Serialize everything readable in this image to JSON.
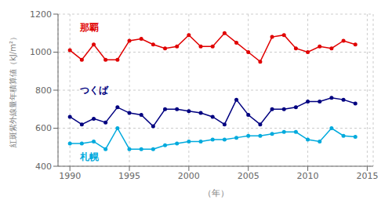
{
  "chart_data": {
    "type": "line",
    "xlabel": "（年）",
    "ylabel": "紅斑紫外線量年積算値（kJ/m²）",
    "x": [
      1990,
      1991,
      1992,
      1993,
      1994,
      1995,
      1996,
      1997,
      1998,
      1999,
      2000,
      2001,
      2002,
      2003,
      2004,
      2005,
      2006,
      2007,
      2008,
      2009,
      2010,
      2011,
      2012,
      2013,
      2014
    ],
    "series": [
      {
        "name": "那覇",
        "color": "#e00000",
        "values": [
          1010,
          960,
          1040,
          960,
          960,
          1060,
          1070,
          1040,
          1020,
          1030,
          1090,
          1030,
          1030,
          1100,
          1050,
          1000,
          950,
          1080,
          1090,
          1020,
          1000,
          1030,
          1020,
          1060,
          1040
        ]
      },
      {
        "name": "つくば",
        "color": "#000080",
        "values": [
          660,
          620,
          650,
          630,
          710,
          680,
          670,
          610,
          700,
          700,
          690,
          680,
          660,
          620,
          750,
          670,
          620,
          700,
          700,
          710,
          740,
          740,
          760,
          750,
          730
        ]
      },
      {
        "name": "札幌",
        "color": "#00aadd",
        "values": [
          520,
          520,
          530,
          490,
          600,
          490,
          490,
          490,
          510,
          520,
          530,
          530,
          540,
          540,
          550,
          560,
          560,
          570,
          580,
          580,
          540,
          530,
          600,
          560,
          555
        ]
      }
    ],
    "annotations": [
      {
        "text": "那覇",
        "x": 1990.5,
        "y": 1130,
        "color": "#e00000"
      },
      {
        "text": "つくば",
        "x": 1990.5,
        "y": 800,
        "color": "#000080"
      },
      {
        "text": "札幌",
        "x": 1990.5,
        "y": 450,
        "color": "#00aadd"
      }
    ],
    "xlim": [
      1989,
      2015.5
    ],
    "xticks": [
      1990,
      1995,
      2000,
      2005,
      2010,
      2015
    ],
    "ylim": [
      400,
      1200
    ],
    "yticks": [
      400,
      600,
      800,
      1000,
      1200
    ],
    "grid": true,
    "marker": "circle",
    "line_style": "solid"
  }
}
